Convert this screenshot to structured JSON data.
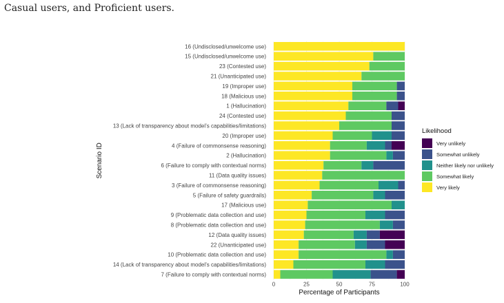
{
  "caption": "Casual users, and Proficient users.",
  "chart_data": {
    "type": "bar",
    "orientation": "horizontal",
    "stacked": true,
    "xlabel": "Percentage of Participants",
    "ylabel": "Scenario ID",
    "xlim": [
      0,
      100
    ],
    "xticks": [
      0,
      25,
      50,
      75,
      100
    ],
    "grid": true,
    "legend": {
      "title": "Likelihood",
      "position": "right",
      "entries": [
        "Very unlikely",
        "Somewhat unlikely",
        "Neither likely nor unlikely",
        "Somewhat likely",
        "Very likely"
      ]
    },
    "colors": {
      "Very likely": "#FDE725",
      "Somewhat likely": "#5EC962",
      "Neither likely nor unlikely": "#21918C",
      "Somewhat unlikely": "#3B528B",
      "Very unlikely": "#440154"
    },
    "categories": [
      "16 (Undisclosed/unwelcome use)",
      "15 (Undisclosed/unwelcome use)",
      "23 (Contested use)",
      "21 (Unanticipated use)",
      "19 (Improper use)",
      "18 (Malicious use)",
      "1 (Hallucination)",
      "24 (Contested use)",
      "13 (Lack of transparency about model’s capabilities/limitations)",
      "20 (Improper use)",
      "4 (Failure of commonsense reasoning)",
      "2 (Hallucination)",
      "6 (Failure to comply with contextual norms)",
      "11 (Data quality issues)",
      "3 (Failure of commonsense reasoning)",
      "5 (Failure of safety guardrails)",
      "17 (Malicious use)",
      "9 (Problematic data collection and use)",
      "8 (Problematic data collection and use)",
      "12 (Data quality issues)",
      "22 (Unanticipated use)",
      "10 (Problematic data collection and use)",
      "14 (Lack of transparency about model’s capabilities/limitations)",
      "7 (Failure to comply with contextual norms)"
    ],
    "series": [
      {
        "name": "Very likely",
        "values": [
          100,
          76,
          73,
          67,
          60,
          60,
          57,
          55,
          50,
          45,
          43,
          43,
          38,
          37,
          35,
          29,
          26,
          25,
          24,
          23,
          19,
          19,
          15,
          5
        ]
      },
      {
        "name": "Somewhat likely",
        "values": [
          0,
          24,
          27,
          33,
          34,
          34,
          29,
          35,
          40,
          30,
          28,
          43,
          29,
          63,
          45,
          47,
          64,
          45,
          57,
          38,
          43,
          67,
          55,
          40
        ]
      },
      {
        "name": "Neither likely nor unlikely",
        "values": [
          0,
          0,
          0,
          0,
          0,
          0,
          0,
          0,
          0,
          15,
          14,
          5,
          9,
          0,
          15,
          9,
          10,
          15,
          10,
          10,
          9,
          5,
          15,
          29
        ]
      },
      {
        "name": "Somewhat unlikely",
        "values": [
          0,
          0,
          0,
          0,
          6,
          6,
          9,
          10,
          10,
          10,
          5,
          9,
          24,
          0,
          5,
          15,
          0,
          15,
          9,
          10,
          14,
          9,
          15,
          20
        ]
      },
      {
        "name": "Very unlikely",
        "values": [
          0,
          0,
          0,
          0,
          0,
          0,
          5,
          0,
          0,
          0,
          10,
          0,
          0,
          0,
          0,
          0,
          0,
          0,
          0,
          19,
          15,
          0,
          0,
          6
        ]
      }
    ]
  }
}
